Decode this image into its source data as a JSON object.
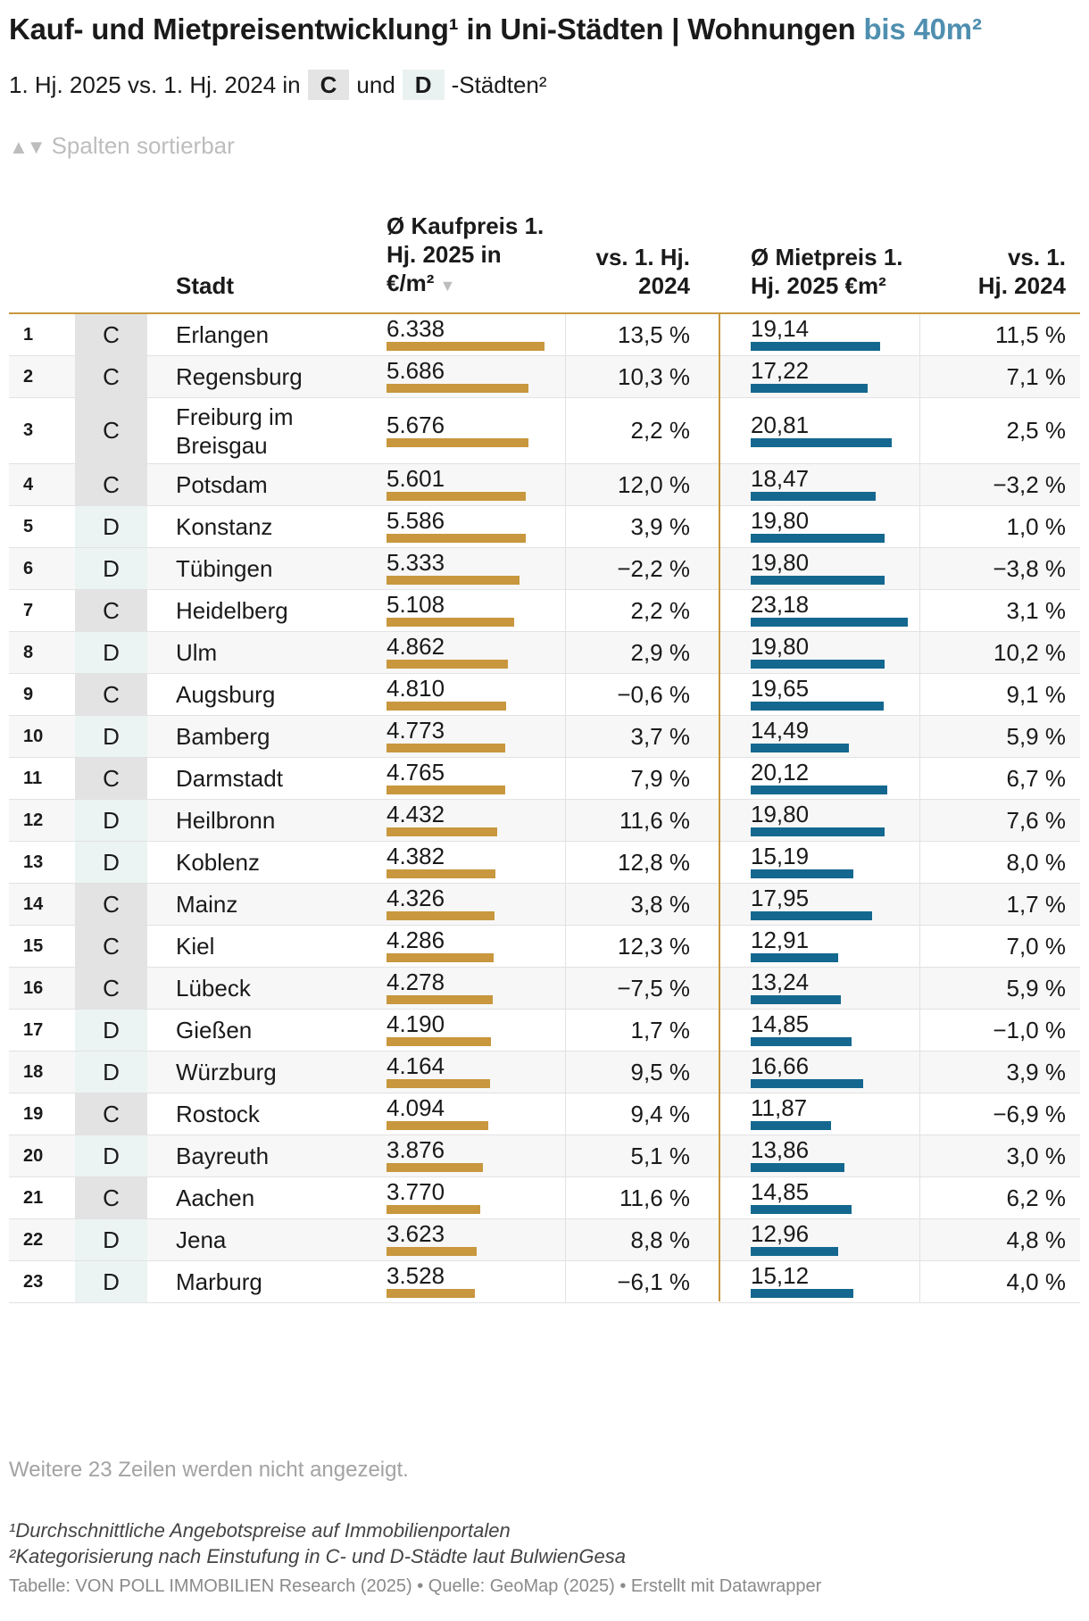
{
  "header": {
    "title_main": "Kauf- und Mietpreisentwicklung¹ in Uni-Städten | Wohnungen ",
    "title_highlight": "bis 40m²",
    "subtitle_pre": "1. Hj. 2025 vs. 1. Hj. 2024 in",
    "subtitle_c": "C",
    "subtitle_und": "und",
    "subtitle_d": "D",
    "subtitle_post": "-Städten²",
    "sort_icon": "▲▼",
    "sort_note": "Spalten sortierbar"
  },
  "colors": {
    "kauf_bar": "#c8973e",
    "miet_bar": "#14688f",
    "title_highlight": "#4f8fb0",
    "cat_c_bg": "#e3e3e3",
    "cat_d_bg": "#ecf3f3"
  },
  "chart_data": {
    "type": "table",
    "sorted_by": "kaufpreis",
    "sort_direction": "descending",
    "columns": {
      "rank": "",
      "category": "",
      "city": "Stadt",
      "kaufpreis": "Ø Kaufpreis 1. Hj. 2025 in €/m²",
      "kauf_change": "vs. 1. Hj. 2024",
      "mietpreis": "Ø Mietpreis 1. Hj. 2025 €m²",
      "miet_change": "vs. 1. Hj. 2024"
    },
    "kauf_bar_max": 6338,
    "miet_bar_max": 23.18,
    "rows": [
      {
        "rank": "1",
        "cat": "C",
        "city": "Erlangen",
        "kauf": "6.338",
        "kauf_val": 6338,
        "kauf_chg": "13,5 %",
        "miet": "19,14",
        "miet_val": 19.14,
        "miet_chg": "11,5 %"
      },
      {
        "rank": "2",
        "cat": "C",
        "city": "Regensburg",
        "kauf": "5.686",
        "kauf_val": 5686,
        "kauf_chg": "10,3 %",
        "miet": "17,22",
        "miet_val": 17.22,
        "miet_chg": "7,1 %"
      },
      {
        "rank": "3",
        "cat": "C",
        "city": "Freiburg im Breisgau",
        "kauf": "5.676",
        "kauf_val": 5676,
        "kauf_chg": "2,2 %",
        "miet": "20,81",
        "miet_val": 20.81,
        "miet_chg": "2,5 %"
      },
      {
        "rank": "4",
        "cat": "C",
        "city": "Potsdam",
        "kauf": "5.601",
        "kauf_val": 5601,
        "kauf_chg": "12,0 %",
        "miet": "18,47",
        "miet_val": 18.47,
        "miet_chg": "−3,2 %"
      },
      {
        "rank": "5",
        "cat": "D",
        "city": "Konstanz",
        "kauf": "5.586",
        "kauf_val": 5586,
        "kauf_chg": "3,9 %",
        "miet": "19,80",
        "miet_val": 19.8,
        "miet_chg": "1,0 %"
      },
      {
        "rank": "6",
        "cat": "D",
        "city": "Tübingen",
        "kauf": "5.333",
        "kauf_val": 5333,
        "kauf_chg": "−2,2 %",
        "miet": "19,80",
        "miet_val": 19.8,
        "miet_chg": "−3,8 %"
      },
      {
        "rank": "7",
        "cat": "C",
        "city": "Heidelberg",
        "kauf": "5.108",
        "kauf_val": 5108,
        "kauf_chg": "2,2 %",
        "miet": "23,18",
        "miet_val": 23.18,
        "miet_chg": "3,1 %"
      },
      {
        "rank": "8",
        "cat": "D",
        "city": "Ulm",
        "kauf": "4.862",
        "kauf_val": 4862,
        "kauf_chg": "2,9 %",
        "miet": "19,80",
        "miet_val": 19.8,
        "miet_chg": "10,2 %"
      },
      {
        "rank": "9",
        "cat": "C",
        "city": "Augsburg",
        "kauf": "4.810",
        "kauf_val": 4810,
        "kauf_chg": "−0,6 %",
        "miet": "19,65",
        "miet_val": 19.65,
        "miet_chg": "9,1 %"
      },
      {
        "rank": "10",
        "cat": "D",
        "city": "Bamberg",
        "kauf": "4.773",
        "kauf_val": 4773,
        "kauf_chg": "3,7 %",
        "miet": "14,49",
        "miet_val": 14.49,
        "miet_chg": "5,9 %"
      },
      {
        "rank": "11",
        "cat": "C",
        "city": "Darmstadt",
        "kauf": "4.765",
        "kauf_val": 4765,
        "kauf_chg": "7,9 %",
        "miet": "20,12",
        "miet_val": 20.12,
        "miet_chg": "6,7 %"
      },
      {
        "rank": "12",
        "cat": "D",
        "city": "Heilbronn",
        "kauf": "4.432",
        "kauf_val": 4432,
        "kauf_chg": "11,6 %",
        "miet": "19,80",
        "miet_val": 19.8,
        "miet_chg": "7,6 %"
      },
      {
        "rank": "13",
        "cat": "D",
        "city": "Koblenz",
        "kauf": "4.382",
        "kauf_val": 4382,
        "kauf_chg": "12,8 %",
        "miet": "15,19",
        "miet_val": 15.19,
        "miet_chg": "8,0 %"
      },
      {
        "rank": "14",
        "cat": "C",
        "city": "Mainz",
        "kauf": "4.326",
        "kauf_val": 4326,
        "kauf_chg": "3,8 %",
        "miet": "17,95",
        "miet_val": 17.95,
        "miet_chg": "1,7 %"
      },
      {
        "rank": "15",
        "cat": "C",
        "city": "Kiel",
        "kauf": "4.286",
        "kauf_val": 4286,
        "kauf_chg": "12,3 %",
        "miet": "12,91",
        "miet_val": 12.91,
        "miet_chg": "7,0 %"
      },
      {
        "rank": "16",
        "cat": "C",
        "city": "Lübeck",
        "kauf": "4.278",
        "kauf_val": 4278,
        "kauf_chg": "−7,5 %",
        "miet": "13,24",
        "miet_val": 13.24,
        "miet_chg": "5,9 %"
      },
      {
        "rank": "17",
        "cat": "D",
        "city": "Gießen",
        "kauf": "4.190",
        "kauf_val": 4190,
        "kauf_chg": "1,7 %",
        "miet": "14,85",
        "miet_val": 14.85,
        "miet_chg": "−1,0 %"
      },
      {
        "rank": "18",
        "cat": "D",
        "city": "Würzburg",
        "kauf": "4.164",
        "kauf_val": 4164,
        "kauf_chg": "9,5 %",
        "miet": "16,66",
        "miet_val": 16.66,
        "miet_chg": "3,9 %"
      },
      {
        "rank": "19",
        "cat": "C",
        "city": "Rostock",
        "kauf": "4.094",
        "kauf_val": 4094,
        "kauf_chg": "9,4 %",
        "miet": "11,87",
        "miet_val": 11.87,
        "miet_chg": "−6,9 %"
      },
      {
        "rank": "20",
        "cat": "D",
        "city": "Bayreuth",
        "kauf": "3.876",
        "kauf_val": 3876,
        "kauf_chg": "5,1 %",
        "miet": "13,86",
        "miet_val": 13.86,
        "miet_chg": "3,0 %"
      },
      {
        "rank": "21",
        "cat": "C",
        "city": "Aachen",
        "kauf": "3.770",
        "kauf_val": 3770,
        "kauf_chg": "11,6 %",
        "miet": "14,85",
        "miet_val": 14.85,
        "miet_chg": "6,2 %"
      },
      {
        "rank": "22",
        "cat": "D",
        "city": "Jena",
        "kauf": "3.623",
        "kauf_val": 3623,
        "kauf_chg": "8,8 %",
        "miet": "12,96",
        "miet_val": 12.96,
        "miet_chg": "4,8 %"
      },
      {
        "rank": "23",
        "cat": "D",
        "city": "Marburg",
        "kauf": "3.528",
        "kauf_val": 3528,
        "kauf_chg": "−6,1 %",
        "miet": "15,12",
        "miet_val": 15.12,
        "miet_chg": "4,0 %"
      }
    ]
  },
  "footer": {
    "more_rows": "Weitere 23 Zeilen werden nicht angezeigt.",
    "footnote1": "¹Durchschnittliche Angebotspreise auf Immobilienportalen",
    "footnote2": "²Kategorisierung nach Einstufung in C- und D-Städte laut BulwienGesa",
    "credit": "Tabelle: VON POLL IMMOBILIEN Research (2025) • Quelle: GeoMap (2025) • Erstellt mit Datawrapper"
  }
}
